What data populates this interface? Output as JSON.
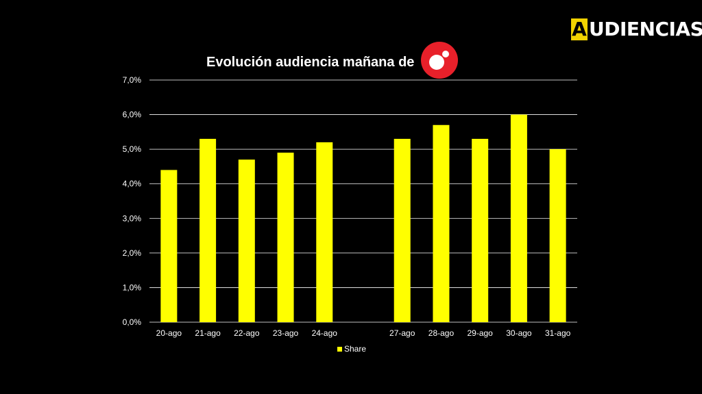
{
  "brand": {
    "letter": "A",
    "rest": "UDIENCIAS"
  },
  "logo": {
    "icon": "channel-logo-icon",
    "color": "#e8202a"
  },
  "chart_data": {
    "type": "bar",
    "title": "Evolución audiencia mañana de",
    "categories": [
      "20-ago",
      "21-ago",
      "22-ago",
      "23-ago",
      "24-ago",
      "",
      "27-ago",
      "28-ago",
      "29-ago",
      "30-ago",
      "31-ago"
    ],
    "series": [
      {
        "name": "Share",
        "color": "#ffff00",
        "values": [
          4.4,
          5.3,
          4.7,
          4.9,
          5.2,
          null,
          5.3,
          5.7,
          5.3,
          6.0,
          5.0
        ]
      }
    ],
    "yticks": [
      "0,0%",
      "1,0%",
      "2,0%",
      "3,0%",
      "4,0%",
      "5,0%",
      "6,0%",
      "7,0%"
    ],
    "ylim": [
      0,
      7
    ],
    "grid": true,
    "legend_position": "bottom"
  }
}
